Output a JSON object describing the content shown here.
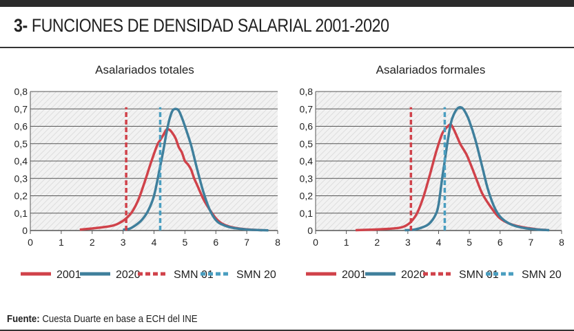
{
  "header": {
    "number": "3-",
    "title": "FUNCIONES DE DENSIDAD SALARIAL 2001-2020"
  },
  "footer": {
    "label": "Fuente:",
    "text": "Cuesta Duarte en base a ECH del INE"
  },
  "colors": {
    "red": "#d0424a",
    "blue": "#3f7f9c",
    "dashed_blue": "#4a9ec0",
    "grid": "#333333"
  },
  "chart_data": [
    {
      "type": "line",
      "title": "Asalariados totales",
      "xlabel": "",
      "ylabel": "",
      "xlim": [
        0,
        8
      ],
      "ylim": [
        0,
        0.8
      ],
      "x_ticks": [
        "0",
        "1",
        "2",
        "3",
        "4",
        "5",
        "6",
        "7",
        "8"
      ],
      "y_ticks": [
        "0",
        "0,1",
        "0,2",
        "0,3",
        "0,4",
        "0,5",
        "0,6",
        "0,7",
        "0,8"
      ],
      "series": [
        {
          "name": "2001",
          "style": "solid",
          "color": "#d0424a",
          "x": [
            1.6,
            2.0,
            2.4,
            2.7,
            2.9,
            3.1,
            3.3,
            3.5,
            3.7,
            3.9,
            4.1,
            4.2,
            4.3,
            4.4,
            4.5,
            4.6,
            4.7,
            4.8,
            4.9,
            5.0,
            5.1,
            5.2,
            5.3,
            5.4,
            5.6,
            5.8,
            6.0,
            6.2,
            6.5,
            7.0,
            7.5
          ],
          "values": [
            0.005,
            0.012,
            0.02,
            0.03,
            0.045,
            0.07,
            0.11,
            0.18,
            0.28,
            0.39,
            0.49,
            0.52,
            0.55,
            0.58,
            0.58,
            0.56,
            0.53,
            0.48,
            0.45,
            0.4,
            0.38,
            0.35,
            0.3,
            0.26,
            0.18,
            0.12,
            0.07,
            0.04,
            0.02,
            0.007,
            0.002
          ]
        },
        {
          "name": "2020",
          "style": "solid",
          "color": "#3f7f9c",
          "x": [
            3.0,
            3.2,
            3.4,
            3.6,
            3.8,
            4.0,
            4.2,
            4.3,
            4.4,
            4.5,
            4.6,
            4.7,
            4.8,
            4.9,
            5.0,
            5.2,
            5.4,
            5.6,
            5.8,
            6.0,
            6.2,
            6.5,
            7.0,
            7.5,
            7.7
          ],
          "values": [
            0.005,
            0.01,
            0.03,
            0.06,
            0.11,
            0.2,
            0.37,
            0.46,
            0.56,
            0.64,
            0.69,
            0.7,
            0.69,
            0.65,
            0.6,
            0.49,
            0.35,
            0.22,
            0.12,
            0.06,
            0.035,
            0.017,
            0.006,
            0.002,
            0.001
          ]
        },
        {
          "name": "SMN 01",
          "style": "dashed",
          "color": "#d0424a",
          "x": [
            3.1,
            3.1
          ],
          "values": [
            0,
            0.71
          ]
        },
        {
          "name": "SMN 20",
          "style": "dashed",
          "color": "#4a9ec0",
          "x": [
            4.2,
            4.2
          ],
          "values": [
            0,
            0.71
          ]
        }
      ]
    },
    {
      "type": "line",
      "title": "Asalariados formales",
      "xlabel": "",
      "ylabel": "",
      "xlim": [
        0,
        8
      ],
      "ylim": [
        0,
        0.8
      ],
      "x_ticks": [
        "0",
        "1",
        "2",
        "3",
        "4",
        "5",
        "6",
        "7",
        "8"
      ],
      "y_ticks": [
        "0",
        "0,1",
        "0,2",
        "0,3",
        "0,4",
        "0,5",
        "0,6",
        "0,7",
        "0,8"
      ],
      "series": [
        {
          "name": "2001",
          "style": "solid",
          "color": "#d0424a",
          "x": [
            1.3,
            1.8,
            2.3,
            2.7,
            2.9,
            3.1,
            3.3,
            3.5,
            3.7,
            3.9,
            4.1,
            4.2,
            4.3,
            4.4,
            4.5,
            4.6,
            4.7,
            4.8,
            4.9,
            5.0,
            5.2,
            5.4,
            5.6,
            5.8,
            6.0,
            6.3,
            6.7,
            7.2,
            7.5
          ],
          "values": [
            0.002,
            0.005,
            0.009,
            0.015,
            0.025,
            0.05,
            0.1,
            0.19,
            0.31,
            0.44,
            0.55,
            0.58,
            0.6,
            0.61,
            0.58,
            0.54,
            0.5,
            0.47,
            0.44,
            0.4,
            0.31,
            0.22,
            0.16,
            0.11,
            0.07,
            0.04,
            0.02,
            0.007,
            0.003
          ]
        },
        {
          "name": "2020",
          "style": "solid",
          "color": "#3f7f9c",
          "x": [
            2.9,
            3.2,
            3.5,
            3.7,
            3.9,
            4.0,
            4.1,
            4.2,
            4.3,
            4.4,
            4.5,
            4.6,
            4.7,
            4.8,
            4.9,
            5.0,
            5.2,
            5.4,
            5.6,
            5.8,
            6.0,
            6.3,
            6.7,
            7.2,
            7.6
          ],
          "values": [
            0.002,
            0.005,
            0.02,
            0.04,
            0.09,
            0.15,
            0.28,
            0.4,
            0.52,
            0.62,
            0.67,
            0.7,
            0.71,
            0.7,
            0.67,
            0.63,
            0.52,
            0.38,
            0.24,
            0.14,
            0.08,
            0.04,
            0.017,
            0.006,
            0.002
          ]
        },
        {
          "name": "SMN 01",
          "style": "dashed",
          "color": "#d0424a",
          "x": [
            3.1,
            3.1
          ],
          "values": [
            0,
            0.71
          ]
        },
        {
          "name": "SMN 20",
          "style": "dashed",
          "color": "#4a9ec0",
          "x": [
            4.2,
            4.2
          ],
          "values": [
            0,
            0.71
          ]
        }
      ]
    }
  ]
}
